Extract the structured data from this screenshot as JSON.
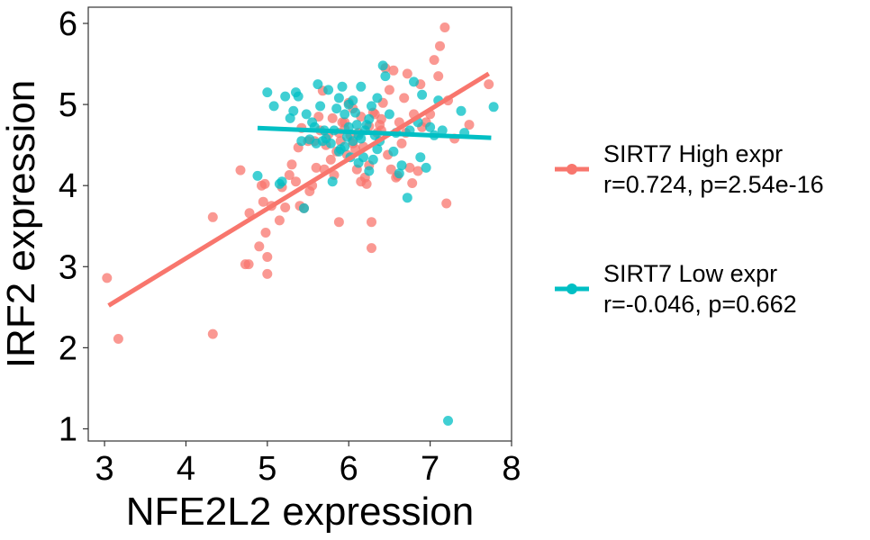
{
  "chart_data": {
    "type": "scatter",
    "title": "",
    "xlabel": "NFE2L2 expression",
    "ylabel": "IRF2 expression",
    "xlim": [
      2.8,
      8.0
    ],
    "ylim": [
      0.85,
      6.2
    ],
    "xticks": [
      "3",
      "4",
      "5",
      "6",
      "7",
      "8"
    ],
    "yticks": [
      "1",
      "2",
      "3",
      "4",
      "5",
      "6"
    ],
    "grid": false,
    "legend_position": "right",
    "series": [
      {
        "name": "SIRT7 High expr",
        "legend_line2": "r=0.724, p=2.54e-16",
        "color": "#F8766D",
        "fit": {
          "x": [
            3.05,
            7.72
          ],
          "y": [
            2.52,
            5.38
          ]
        },
        "points": [
          [
            3.03,
            2.86
          ],
          [
            3.17,
            2.11
          ],
          [
            4.33,
            3.61
          ],
          [
            4.33,
            2.17
          ],
          [
            4.67,
            4.19
          ],
          [
            4.73,
            3.03
          ],
          [
            4.77,
            3.03
          ],
          [
            4.78,
            3.66
          ],
          [
            4.9,
            3.25
          ],
          [
            4.93,
            4.0
          ],
          [
            4.95,
            3.8
          ],
          [
            4.97,
            4.02
          ],
          [
            4.98,
            3.42
          ],
          [
            5.0,
            3.12
          ],
          [
            5.0,
            2.91
          ],
          [
            5.05,
            3.75
          ],
          [
            5.15,
            3.57
          ],
          [
            5.18,
            3.98
          ],
          [
            5.22,
            3.73
          ],
          [
            5.27,
            4.13
          ],
          [
            5.3,
            4.26
          ],
          [
            5.35,
            4.05
          ],
          [
            5.38,
            4.47
          ],
          [
            5.4,
            3.75
          ],
          [
            5.42,
            4.71
          ],
          [
            5.45,
            3.72
          ],
          [
            5.5,
            4.55
          ],
          [
            5.52,
            3.93
          ],
          [
            5.55,
            4.0
          ],
          [
            5.58,
            4.55
          ],
          [
            5.6,
            4.22
          ],
          [
            5.63,
            4.85
          ],
          [
            5.65,
            4.68
          ],
          [
            5.68,
            5.17
          ],
          [
            5.7,
            4.2
          ],
          [
            5.72,
            4.5
          ],
          [
            5.75,
            4.63
          ],
          [
            5.78,
            4.32
          ],
          [
            5.8,
            4.83
          ],
          [
            5.82,
            4.13
          ],
          [
            5.85,
            4.42
          ],
          [
            5.88,
            3.55
          ],
          [
            5.9,
            4.55
          ],
          [
            5.92,
            4.78
          ],
          [
            5.95,
            4.7
          ],
          [
            5.98,
            4.38
          ],
          [
            6.0,
            5.02
          ],
          [
            6.02,
            4.62
          ],
          [
            6.05,
            4.95
          ],
          [
            6.08,
            4.45
          ],
          [
            6.1,
            4.2
          ],
          [
            6.12,
            4.65
          ],
          [
            6.15,
            4.85
          ],
          [
            6.18,
            4.48
          ],
          [
            6.2,
            4.1
          ],
          [
            6.22,
            4.02
          ],
          [
            6.25,
            4.73
          ],
          [
            6.28,
            3.55
          ],
          [
            6.28,
            3.23
          ],
          [
            6.3,
            4.9
          ],
          [
            6.35,
            4.65
          ],
          [
            6.38,
            4.75
          ],
          [
            6.4,
            4.82
          ],
          [
            6.42,
            5.02
          ],
          [
            6.45,
            5.45
          ],
          [
            6.48,
            4.38
          ],
          [
            6.5,
            5.18
          ],
          [
            6.52,
            4.2
          ],
          [
            6.55,
            5.42
          ],
          [
            6.58,
            4.1
          ],
          [
            6.6,
            4.12
          ],
          [
            6.62,
            4.78
          ],
          [
            6.65,
            4.52
          ],
          [
            6.68,
            5.08
          ],
          [
            6.7,
            4.65
          ],
          [
            6.72,
            5.38
          ],
          [
            6.75,
            4.22
          ],
          [
            6.78,
            4.03
          ],
          [
            6.8,
            4.88
          ],
          [
            6.85,
            4.18
          ],
          [
            6.88,
            5.25
          ],
          [
            6.9,
            4.72
          ],
          [
            6.95,
            4.78
          ],
          [
            7.0,
            4.88
          ],
          [
            7.05,
            5.55
          ],
          [
            7.1,
            5.35
          ],
          [
            7.12,
            5.72
          ],
          [
            7.18,
            5.95
          ],
          [
            7.2,
            3.78
          ],
          [
            7.22,
            5.05
          ],
          [
            7.3,
            4.58
          ],
          [
            7.48,
            4.75
          ],
          [
            7.72,
            5.25
          ],
          [
            6.05,
            4.52
          ],
          [
            6.32,
            4.88
          ],
          [
            5.88,
            4.65
          ],
          [
            6.15,
            4.05
          ],
          [
            5.95,
            4.78
          ],
          [
            6.25,
            4.25
          ],
          [
            6.4,
            4.68
          ]
        ]
      },
      {
        "name": "SIRT7 Low expr",
        "legend_line2": "r=-0.046, p=0.662",
        "color": "#00BFC4",
        "fit": {
          "x": [
            4.88,
            7.75
          ],
          "y": [
            4.71,
            4.59
          ]
        },
        "points": [
          [
            4.88,
            4.12
          ],
          [
            5.0,
            5.15
          ],
          [
            5.08,
            4.98
          ],
          [
            5.15,
            4.02
          ],
          [
            5.18,
            4.05
          ],
          [
            5.22,
            5.1
          ],
          [
            5.28,
            4.83
          ],
          [
            5.32,
            4.92
          ],
          [
            5.35,
            5.15
          ],
          [
            5.38,
            5.1
          ],
          [
            5.42,
            4.55
          ],
          [
            5.45,
            3.72
          ],
          [
            5.48,
            4.88
          ],
          [
            5.52,
            4.57
          ],
          [
            5.55,
            4.78
          ],
          [
            5.58,
            4.72
          ],
          [
            5.6,
            4.52
          ],
          [
            5.62,
            5.25
          ],
          [
            5.65,
            4.98
          ],
          [
            5.68,
            4.55
          ],
          [
            5.7,
            4.68
          ],
          [
            5.72,
            4.58
          ],
          [
            5.75,
            5.18
          ],
          [
            5.78,
            4.52
          ],
          [
            5.8,
            4.05
          ],
          [
            5.82,
            4.68
          ],
          [
            5.85,
            4.95
          ],
          [
            5.88,
            5.08
          ],
          [
            5.9,
            4.45
          ],
          [
            5.92,
            5.22
          ],
          [
            5.95,
            4.88
          ],
          [
            5.98,
            4.6
          ],
          [
            6.0,
            4.72
          ],
          [
            6.02,
            4.35
          ],
          [
            6.05,
            5.05
          ],
          [
            6.08,
            4.9
          ],
          [
            6.1,
            4.75
          ],
          [
            6.12,
            4.62
          ],
          [
            6.15,
            5.22
          ],
          [
            6.18,
            4.35
          ],
          [
            6.2,
            4.68
          ],
          [
            6.22,
            4.75
          ],
          [
            6.25,
            4.82
          ],
          [
            6.28,
            4.98
          ],
          [
            6.3,
            4.32
          ],
          [
            6.32,
            4.62
          ],
          [
            6.35,
            5.08
          ],
          [
            6.38,
            4.55
          ],
          [
            6.42,
            5.48
          ],
          [
            6.45,
            5.35
          ],
          [
            6.5,
            4.88
          ],
          [
            6.55,
            4.42
          ],
          [
            6.58,
            4.65
          ],
          [
            6.62,
            4.15
          ],
          [
            6.65,
            4.25
          ],
          [
            6.72,
            3.85
          ],
          [
            6.75,
            4.68
          ],
          [
            6.8,
            5.28
          ],
          [
            6.85,
            4.78
          ],
          [
            6.88,
            4.35
          ],
          [
            6.9,
            5.12
          ],
          [
            6.95,
            4.22
          ],
          [
            7.0,
            4.72
          ],
          [
            7.05,
            4.62
          ],
          [
            7.1,
            5.05
          ],
          [
            7.15,
            4.68
          ],
          [
            7.22,
            1.1
          ],
          [
            7.38,
            4.92
          ],
          [
            7.42,
            4.65
          ],
          [
            7.78,
            4.97
          ],
          [
            6.05,
            4.55
          ],
          [
            6.0,
            5.0
          ],
          [
            5.88,
            4.42
          ],
          [
            6.15,
            4.58
          ],
          [
            6.35,
            4.45
          ],
          [
            6.25,
            4.18
          ],
          [
            6.12,
            4.28
          ],
          [
            5.95,
            4.48
          ]
        ]
      }
    ]
  }
}
